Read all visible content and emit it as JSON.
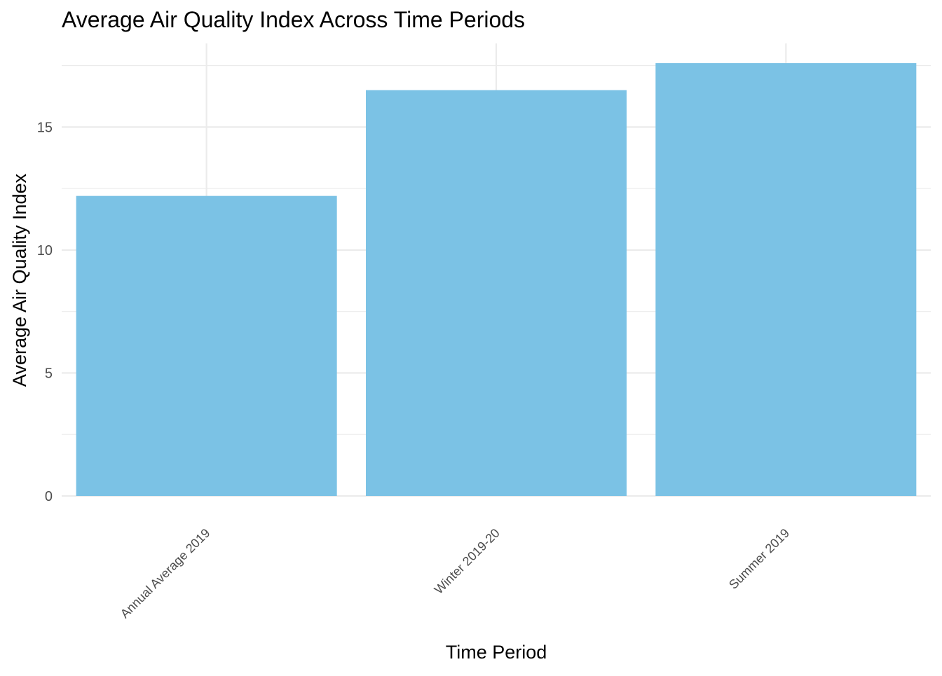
{
  "chart_data": {
    "type": "bar",
    "title": "Average Air Quality Index Across Time Periods",
    "xlabel": "Time Period",
    "ylabel": "Average Air Quality Index",
    "categories": [
      "Annual Average 2019",
      "Winter 2019-20",
      "Summer 2019"
    ],
    "values": [
      12.2,
      16.5,
      17.6
    ],
    "ylim": [
      0,
      18.4
    ],
    "yticks": [
      0,
      5,
      10,
      15
    ],
    "yticks_minor": [
      2.5,
      7.5,
      12.5,
      17.5
    ],
    "grid": true,
    "legend": "none",
    "bar_color": "#7BC2E5",
    "grid_color": "#EBEBEB"
  }
}
